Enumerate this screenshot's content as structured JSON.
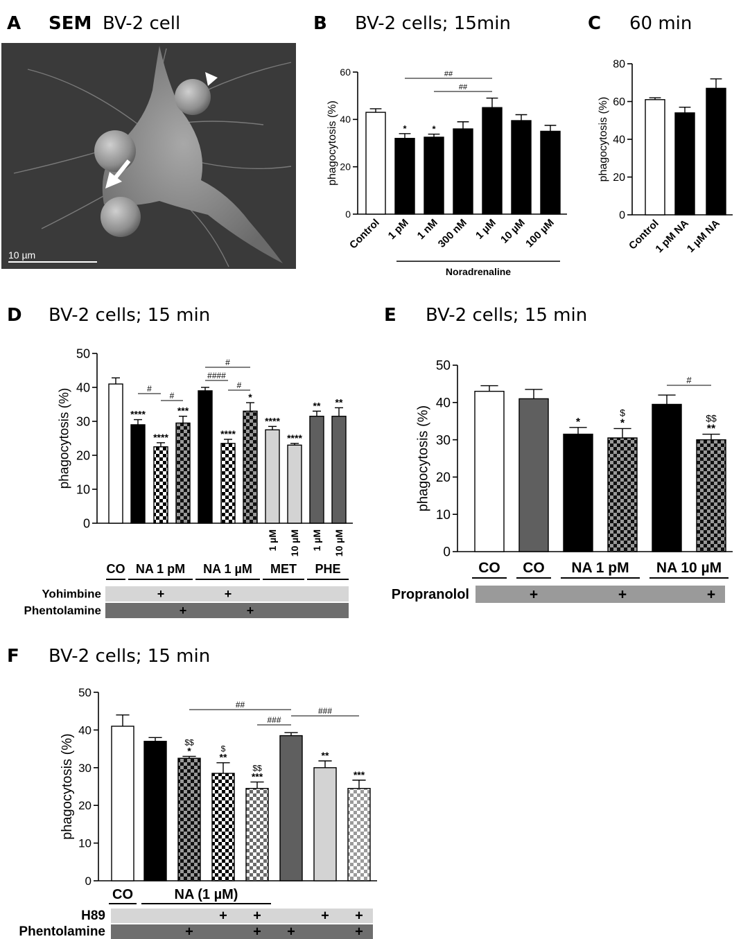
{
  "panels": {
    "A": {
      "label": "A",
      "title_bold": "SEM",
      "title": "BV-2 cell",
      "scalebar": "10 µm"
    },
    "B": {
      "label": "B",
      "title": "BV-2 cells; 15min"
    },
    "C": {
      "label": "C",
      "title": "60 min"
    },
    "D": {
      "label": "D",
      "title": "BV-2 cells; 15 min"
    },
    "E": {
      "label": "E",
      "title": "BV-2 cells; 15 min"
    },
    "F": {
      "label": "F",
      "title": "BV-2 cells; 15 min"
    }
  },
  "colors": {
    "white": "#ffffff",
    "black": "#000000",
    "dark_gray": "#5f5f5f",
    "light_gray": "#d3d3d3",
    "row_light": "#d6d6d6",
    "row_dark": "#6e6e6e",
    "row_mid": "#9a9a9a",
    "sem_bg": "#3a3a3a"
  },
  "chart_data": [
    {
      "panel": "B",
      "type": "bar",
      "ylabel": "phagocytosis (%)",
      "ylim": [
        0,
        60
      ],
      "yticks": [
        0,
        20,
        40,
        60
      ],
      "categories": [
        "Control",
        "1 pM",
        "1 nM",
        "300 nM",
        "1 µM",
        "10 µM",
        "100 µM"
      ],
      "values": [
        43,
        32,
        32.5,
        36,
        45,
        39.5,
        35
      ],
      "errors": [
        1.5,
        2,
        1.3,
        3,
        4,
        2.5,
        2.5
      ],
      "fills": [
        "white",
        "black",
        "black",
        "black",
        "black",
        "black",
        "black"
      ],
      "stars": [
        "",
        "*",
        "*",
        "",
        "",
        "",
        ""
      ],
      "group_label": "Noradrenaline",
      "brackets": [
        {
          "from": 1,
          "to": 4,
          "text": "##"
        },
        {
          "from": 2,
          "to": 4,
          "text": "##"
        }
      ]
    },
    {
      "panel": "C",
      "type": "bar",
      "ylabel": "phagocytosis (%)",
      "ylim": [
        0,
        80
      ],
      "yticks": [
        0,
        20,
        40,
        60,
        80
      ],
      "categories": [
        "Control",
        "1 pM NA",
        "1 µM NA"
      ],
      "values": [
        61,
        54,
        67
      ],
      "errors": [
        1,
        3,
        5
      ],
      "fills": [
        "white",
        "black",
        "black"
      ]
    },
    {
      "panel": "D",
      "type": "bar",
      "ylabel": "phagocytosis (%)",
      "ylim": [
        0,
        50
      ],
      "yticks": [
        0,
        10,
        20,
        30,
        40,
        50
      ],
      "values": [
        41,
        29,
        22.5,
        29.5,
        39,
        23.5,
        33,
        27.5,
        23,
        31.5,
        31.5
      ],
      "errors": [
        1.8,
        1.5,
        1.2,
        2,
        1,
        1.2,
        2.5,
        1,
        0.5,
        1.5,
        2.5
      ],
      "fills": [
        "white",
        "black",
        "check",
        "check_dark",
        "black",
        "check",
        "check_dark",
        "light_gray",
        "light_gray",
        "dark_gray",
        "dark_gray"
      ],
      "stars": [
        "",
        "****",
        "****",
        "***",
        "",
        "****",
        "*",
        "****",
        "****",
        "**",
        "**"
      ],
      "vertical_labels": [
        "",
        "",
        "",
        "",
        "",
        "",
        "",
        "1 µM",
        "10 µM",
        "1 µM",
        "10 µM"
      ],
      "groups": [
        {
          "text": "CO",
          "from": 0,
          "to": 0
        },
        {
          "text": "NA 1 pM",
          "from": 1,
          "to": 3
        },
        {
          "text": "NA 1 µM",
          "from": 4,
          "to": 6
        },
        {
          "text": "MET",
          "from": 7,
          "to": 8
        },
        {
          "text": "PHE",
          "from": 9,
          "to": 10
        }
      ],
      "rows": [
        {
          "name": "Yohimbine",
          "plus": [
            2,
            5
          ],
          "tone": "light"
        },
        {
          "name": "Phentolamine",
          "plus": [
            3,
            6
          ],
          "tone": "dark"
        }
      ],
      "brackets": [
        {
          "from": 1,
          "to": 2,
          "text": "#",
          "level": 568
        },
        {
          "from": 2,
          "to": 3,
          "text": "#",
          "level": 578
        },
        {
          "from": 4,
          "to": 6,
          "text": "#",
          "level": 530
        },
        {
          "from": 4,
          "to": 5,
          "text": "####",
          "level": 549
        },
        {
          "from": 5,
          "to": 6,
          "text": "#",
          "level": 563
        }
      ]
    },
    {
      "panel": "E",
      "type": "bar",
      "ylabel": "phagocytosis (%)",
      "ylim": [
        0,
        50
      ],
      "yticks": [
        0,
        10,
        20,
        30,
        40,
        50
      ],
      "values": [
        43,
        41,
        31.5,
        30.5,
        39.5,
        30
      ],
      "errors": [
        1.5,
        2.5,
        1.8,
        2.5,
        2.5,
        1.5
      ],
      "fills": [
        "white",
        "dark_gray",
        "black",
        "check_dark",
        "black",
        "check_dark"
      ],
      "stars": [
        "",
        "",
        "*",
        "*",
        "",
        "**"
      ],
      "dollars": [
        "",
        "",
        "",
        "$",
        "",
        "$$"
      ],
      "groups": [
        {
          "text": "CO",
          "from": 0,
          "to": 0
        },
        {
          "text": "CO",
          "from": 1,
          "to": 1
        },
        {
          "text": "NA 1 pM",
          "from": 2,
          "to": 3
        },
        {
          "text": "NA 10 µM",
          "from": 4,
          "to": 5
        }
      ],
      "rows": [
        {
          "name": "Propranolol",
          "plus": [
            1,
            3,
            5
          ],
          "tone": "mid"
        }
      ],
      "brackets": [
        {
          "from": 4,
          "to": 5,
          "text": "#",
          "level": 556
        }
      ]
    },
    {
      "panel": "F",
      "type": "bar",
      "ylabel": "phagocytosis (%)",
      "ylim": [
        0,
        50
      ],
      "yticks": [
        0,
        10,
        20,
        30,
        40,
        50
      ],
      "values": [
        41,
        37,
        32.5,
        28.5,
        24.5,
        38.5,
        30,
        24.5
      ],
      "errors": [
        3,
        1,
        0.5,
        2.8,
        1.7,
        0.8,
        1.8,
        2.2
      ],
      "fills": [
        "white",
        "black",
        "check_dark",
        "check",
        "check_gray",
        "dark_gray",
        "light_gray",
        "check_light"
      ],
      "stars": [
        "",
        "",
        "*",
        "**",
        "***",
        "",
        "**",
        "***"
      ],
      "dollars": [
        "",
        "",
        "$$",
        "$",
        "$$",
        "",
        "",
        ""
      ],
      "groups": [
        {
          "text": "CO",
          "from": 0,
          "to": 0
        },
        {
          "text": "NA (1 µM)",
          "from": 1,
          "to": 4
        }
      ],
      "rows": [
        {
          "name": "H89",
          "plus": [
            3,
            4,
            6,
            7
          ],
          "tone": "light"
        },
        {
          "name": "Phentolamine",
          "plus": [
            2,
            4,
            5,
            7
          ],
          "tone": "dark"
        }
      ],
      "brackets": [
        {
          "from": 2,
          "to": 5,
          "text": "##",
          "level": 1024
        },
        {
          "from": 4,
          "to": 5,
          "text": "###",
          "level": 1046
        },
        {
          "from": 5,
          "to": 7,
          "text": "###",
          "level": 1033
        }
      ]
    }
  ]
}
